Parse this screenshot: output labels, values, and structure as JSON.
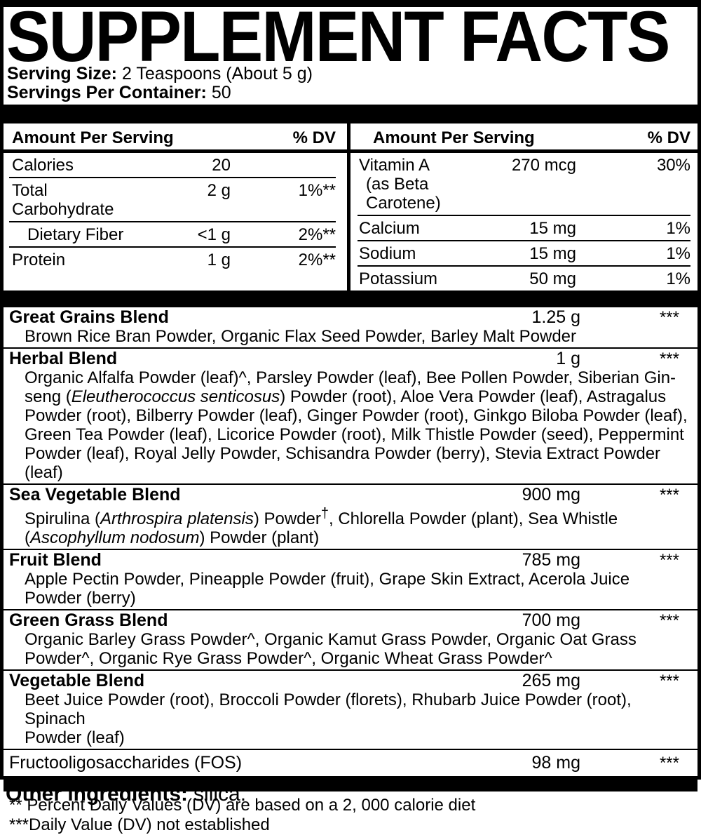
{
  "colors": {
    "ink": "#000000",
    "paper": "#ffffff"
  },
  "title": "SUPPLEMENT FACTS",
  "serving": {
    "size_label": "Serving Size:",
    "size_value": "2 Teaspoons (About 5 g)",
    "per_container_label": "Servings Per Container:",
    "per_container_value": "50"
  },
  "columns": {
    "left": {
      "header_label": "Amount Per Serving",
      "dv_label": "% DV",
      "rows": [
        {
          "name": "Calories",
          "amount": "20",
          "dv": ""
        },
        {
          "name": "Total Carbohydrate",
          "amount": "2 g",
          "dv": "1%**"
        },
        {
          "name": "Dietary Fiber",
          "amount": "<1 g",
          "dv": "2%**"
        },
        {
          "name": "Protein",
          "amount": "1 g",
          "dv": "2%**"
        }
      ]
    },
    "right": {
      "header_label": "Amount Per Serving",
      "dv_label": "% DV",
      "rows": [
        {
          "name": "Vitamin A",
          "sub": "(as Beta Carotene)",
          "amount": "270 mcg",
          "dv": "30%"
        },
        {
          "name": "Calcium",
          "amount": "15 mg",
          "dv": "1%"
        },
        {
          "name": "Sodium",
          "amount": "15 mg",
          "dv": "1%"
        },
        {
          "name": "Potassium",
          "amount": "50 mg",
          "dv": "1%"
        }
      ]
    }
  },
  "blends": [
    {
      "name": "Great Grains Blend",
      "amount": "1.25 g",
      "dv": "***",
      "lines": [
        "Brown Rice Bran Powder, Organic Flax Seed Powder, Barley Malt Powder"
      ]
    },
    {
      "name": "Herbal Blend",
      "amount": "1 g",
      "dv": "***",
      "lines": [
        "Organic Alfalfa Powder (leaf)^, Parsley Powder (leaf), Bee Pollen Powder, Siberian Gin-",
        "seng (<i>Eleutherococcus senticosus</i>) Powder (root), Aloe Vera Powder (leaf), Astragalus",
        "Powder (root), Bilberry Powder (leaf), Ginger Powder (root), Ginkgo Biloba Powder (leaf),",
        "Green Tea Powder (leaf), Licorice Powder (root), Milk Thistle Powder (seed), Peppermint",
        "Powder (leaf), Royal Jelly Powder, Schisandra Powder (berry), Stevia Extract Powder (leaf)"
      ]
    },
    {
      "name": "Sea Vegetable Blend",
      "amount": "900 mg",
      "dv": "***",
      "lines": [
        "Spirulina (<i>Arthrospira platensis</i>) Powder<sup>†</sup>, Chlorella Powder (plant), Sea Whistle",
        "(<i>Ascophyllum nodosum</i>) Powder (plant)"
      ]
    },
    {
      "name": "Fruit Blend",
      "amount": "785 mg",
      "dv": "***",
      "lines": [
        "Apple Pectin Powder, Pineapple Powder (fruit), Grape Skin Extract, Acerola Juice",
        "Powder (berry)"
      ]
    },
    {
      "name": "Green Grass Blend",
      "amount": "700 mg",
      "dv": "***",
      "lines": [
        "Organic Barley Grass Powder^, Organic Kamut Grass Powder, Organic Oat Grass",
        "Powder^, Organic Rye Grass Powder^, Organic Wheat Grass Powder^"
      ]
    },
    {
      "name": "Vegetable Blend",
      "amount": "265 mg",
      "dv": "***",
      "lines": [
        "Beet Juice Powder (root), Broccoli Powder (florets), Rhubarb Juice Powder (root), Spinach",
        "Powder (leaf)"
      ]
    },
    {
      "name": "Fructooligosaccharides (FOS)",
      "amount": "98 mg",
      "dv": "***",
      "lines": []
    }
  ],
  "footnotes": [
    "** Percent Daily Values (DV) are based on a 2, 000 calorie diet",
    "***Daily Value (DV) not established"
  ],
  "other_ingredients": {
    "label": "Other ingredients:",
    "value": "silica."
  }
}
